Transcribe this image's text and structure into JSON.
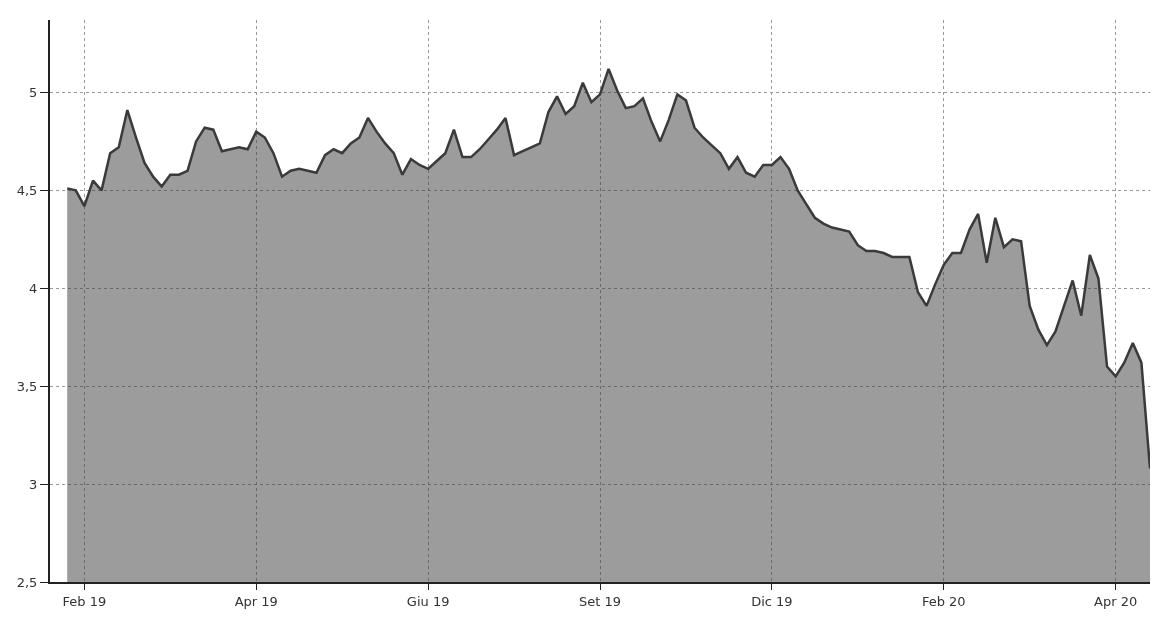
{
  "chart_data": {
    "type": "area",
    "categories": [
      null,
      null,
      "Feb 19",
      null,
      null,
      null,
      null,
      null,
      null,
      null,
      null,
      null,
      null,
      null,
      null,
      null,
      null,
      null,
      null,
      null,
      null,
      null,
      "Apr 19",
      null,
      null,
      null,
      null,
      null,
      null,
      null,
      null,
      null,
      null,
      null,
      null,
      null,
      null,
      null,
      null,
      null,
      null,
      null,
      "Giu 19",
      null,
      null,
      null,
      null,
      null,
      null,
      null,
      null,
      null,
      null,
      null,
      null,
      null,
      null,
      null,
      null,
      null,
      null,
      null,
      "Set 19",
      null,
      null,
      null,
      null,
      null,
      null,
      null,
      null,
      null,
      null,
      null,
      null,
      null,
      null,
      null,
      null,
      null,
      null,
      null,
      "Dic 19",
      null,
      null,
      null,
      null,
      null,
      null,
      null,
      null,
      null,
      null,
      null,
      null,
      null,
      null,
      null,
      null,
      null,
      null,
      null,
      "Feb 20",
      null,
      null,
      null,
      null,
      null,
      null,
      null,
      null,
      null,
      null,
      null,
      null,
      null,
      null,
      null,
      null,
      null,
      null,
      null,
      "Apr 20",
      null,
      null,
      null,
      null
    ],
    "series": [
      {
        "color": "#3a3a3a",
        "values": [
          4.51,
          4.5,
          4.42,
          4.55,
          4.5,
          4.69,
          4.72,
          4.91,
          4.77,
          4.64,
          4.57,
          4.52,
          4.58,
          4.58,
          4.6,
          4.75,
          4.82,
          4.81,
          4.7,
          4.71,
          4.72,
          4.71,
          4.8,
          4.77,
          4.69,
          4.57,
          4.6,
          4.61,
          4.6,
          4.59,
          4.68,
          4.71,
          4.69,
          4.74,
          4.77,
          4.87,
          4.8,
          4.74,
          4.69,
          4.58,
          4.66,
          4.63,
          4.61,
          4.65,
          4.69,
          4.81,
          4.67,
          4.67,
          4.71,
          4.76,
          4.81,
          4.87,
          4.68,
          4.7,
          4.72,
          4.74,
          4.9,
          4.98,
          4.89,
          4.93,
          5.05,
          4.95,
          4.99,
          5.12,
          5.01,
          4.92,
          4.93,
          4.97,
          4.85,
          4.75,
          4.86,
          4.99,
          4.96,
          4.82,
          4.77,
          4.73,
          4.69,
          4.61,
          4.67,
          4.59,
          4.57,
          4.63,
          4.63,
          4.67,
          4.61,
          4.5,
          4.43,
          4.36,
          4.33,
          4.31,
          4.3,
          4.29,
          4.22,
          4.19,
          4.19,
          4.18,
          4.16,
          4.16,
          4.16,
          3.98,
          3.91,
          4.02,
          4.12,
          4.18,
          4.18,
          4.3,
          4.38,
          4.13,
          4.36,
          4.21,
          4.25,
          4.24,
          3.91,
          3.79,
          3.71,
          3.78,
          3.91,
          4.04,
          3.86,
          4.17,
          4.05,
          3.6,
          3.55,
          3.62,
          3.72,
          3.62,
          3.08
        ]
      }
    ],
    "ylim": [
      2.5,
      5.37
    ],
    "yticks": [
      {
        "value": 2.5,
        "label": "2,5"
      },
      3,
      {
        "value": 3.5,
        "label": "3,5"
      },
      4,
      {
        "value": 4.5,
        "label": "4,5"
      },
      5
    ],
    "grid": true,
    "marker": "none",
    "line_style": "solid"
  }
}
